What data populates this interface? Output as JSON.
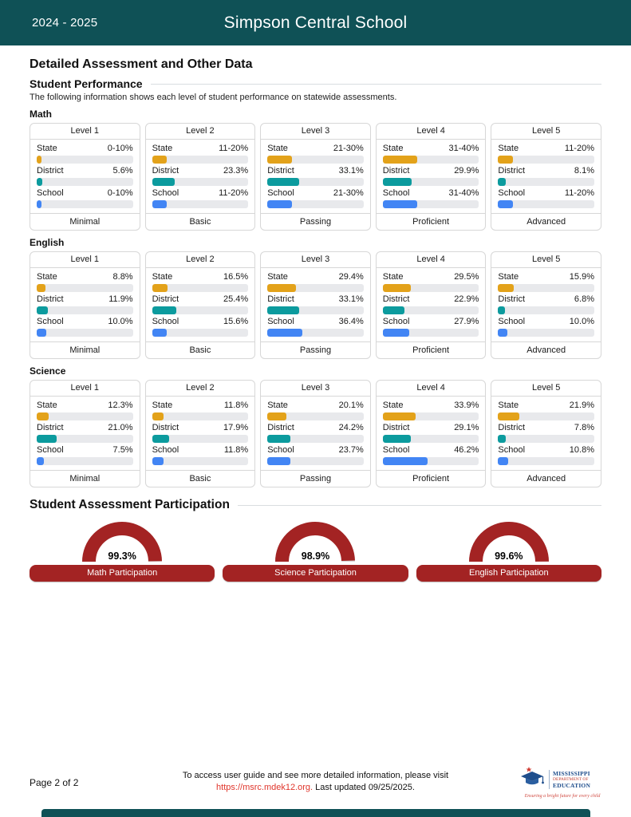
{
  "header": {
    "year": "2024 - 2025",
    "school": "Simpson Central School"
  },
  "main_title": "Detailed Assessment and Other Data",
  "performance": {
    "heading": "Student Performance",
    "subtitle": "The following information shows each level of student performance on statewide assessments.",
    "subjects": [
      {
        "name": "Math",
        "levels": [
          {
            "title": "Level 1",
            "descriptor": "Minimal",
            "rows": [
              {
                "label": "State",
                "key": "state",
                "value": "0-10%",
                "bar": 5
              },
              {
                "label": "District",
                "key": "district",
                "value": "5.6%",
                "bar": 5.6
              },
              {
                "label": "School",
                "key": "school",
                "value": "0-10%",
                "bar": 5
              }
            ]
          },
          {
            "title": "Level 2",
            "descriptor": "Basic",
            "rows": [
              {
                "label": "State",
                "key": "state",
                "value": "11-20%",
                "bar": 15.5
              },
              {
                "label": "District",
                "key": "district",
                "value": "23.3%",
                "bar": 23.3
              },
              {
                "label": "School",
                "key": "school",
                "value": "11-20%",
                "bar": 15.5
              }
            ]
          },
          {
            "title": "Level 3",
            "descriptor": "Passing",
            "rows": [
              {
                "label": "State",
                "key": "state",
                "value": "21-30%",
                "bar": 25.5
              },
              {
                "label": "District",
                "key": "district",
                "value": "33.1%",
                "bar": 33.1
              },
              {
                "label": "School",
                "key": "school",
                "value": "21-30%",
                "bar": 25.5
              }
            ]
          },
          {
            "title": "Level 4",
            "descriptor": "Proficient",
            "rows": [
              {
                "label": "State",
                "key": "state",
                "value": "31-40%",
                "bar": 35.5
              },
              {
                "label": "District",
                "key": "district",
                "value": "29.9%",
                "bar": 29.9
              },
              {
                "label": "School",
                "key": "school",
                "value": "31-40%",
                "bar": 35.5
              }
            ]
          },
          {
            "title": "Level 5",
            "descriptor": "Advanced",
            "rows": [
              {
                "label": "State",
                "key": "state",
                "value": "11-20%",
                "bar": 15.5
              },
              {
                "label": "District",
                "key": "district",
                "value": "8.1%",
                "bar": 8.1
              },
              {
                "label": "School",
                "key": "school",
                "value": "11-20%",
                "bar": 15.5
              }
            ]
          }
        ]
      },
      {
        "name": "English",
        "levels": [
          {
            "title": "Level 1",
            "descriptor": "Minimal",
            "rows": [
              {
                "label": "State",
                "key": "state",
                "value": "8.8%",
                "bar": 8.8
              },
              {
                "label": "District",
                "key": "district",
                "value": "11.9%",
                "bar": 11.9
              },
              {
                "label": "School",
                "key": "school",
                "value": "10.0%",
                "bar": 10
              }
            ]
          },
          {
            "title": "Level 2",
            "descriptor": "Basic",
            "rows": [
              {
                "label": "State",
                "key": "state",
                "value": "16.5%",
                "bar": 16.5
              },
              {
                "label": "District",
                "key": "district",
                "value": "25.4%",
                "bar": 25.4
              },
              {
                "label": "School",
                "key": "school",
                "value": "15.6%",
                "bar": 15.6
              }
            ]
          },
          {
            "title": "Level 3",
            "descriptor": "Passing",
            "rows": [
              {
                "label": "State",
                "key": "state",
                "value": "29.4%",
                "bar": 29.4
              },
              {
                "label": "District",
                "key": "district",
                "value": "33.1%",
                "bar": 33.1
              },
              {
                "label": "School",
                "key": "school",
                "value": "36.4%",
                "bar": 36.4
              }
            ]
          },
          {
            "title": "Level 4",
            "descriptor": "Proficient",
            "rows": [
              {
                "label": "State",
                "key": "state",
                "value": "29.5%",
                "bar": 29.5
              },
              {
                "label": "District",
                "key": "district",
                "value": "22.9%",
                "bar": 22.9
              },
              {
                "label": "School",
                "key": "school",
                "value": "27.9%",
                "bar": 27.9
              }
            ]
          },
          {
            "title": "Level 5",
            "descriptor": "Advanced",
            "rows": [
              {
                "label": "State",
                "key": "state",
                "value": "15.9%",
                "bar": 15.9
              },
              {
                "label": "District",
                "key": "district",
                "value": "6.8%",
                "bar": 6.8
              },
              {
                "label": "School",
                "key": "school",
                "value": "10.0%",
                "bar": 10
              }
            ]
          }
        ]
      },
      {
        "name": "Science",
        "levels": [
          {
            "title": "Level 1",
            "descriptor": "Minimal",
            "rows": [
              {
                "label": "State",
                "key": "state",
                "value": "12.3%",
                "bar": 12.3
              },
              {
                "label": "District",
                "key": "district",
                "value": "21.0%",
                "bar": 21
              },
              {
                "label": "School",
                "key": "school",
                "value": "7.5%",
                "bar": 7.5
              }
            ]
          },
          {
            "title": "Level 2",
            "descriptor": "Basic",
            "rows": [
              {
                "label": "State",
                "key": "state",
                "value": "11.8%",
                "bar": 11.8
              },
              {
                "label": "District",
                "key": "district",
                "value": "17.9%",
                "bar": 17.9
              },
              {
                "label": "School",
                "key": "school",
                "value": "11.8%",
                "bar": 11.8
              }
            ]
          },
          {
            "title": "Level 3",
            "descriptor": "Passing",
            "rows": [
              {
                "label": "State",
                "key": "state",
                "value": "20.1%",
                "bar": 20.1
              },
              {
                "label": "District",
                "key": "district",
                "value": "24.2%",
                "bar": 24.2
              },
              {
                "label": "School",
                "key": "school",
                "value": "23.7%",
                "bar": 23.7
              }
            ]
          },
          {
            "title": "Level 4",
            "descriptor": "Proficient",
            "rows": [
              {
                "label": "State",
                "key": "state",
                "value": "33.9%",
                "bar": 33.9
              },
              {
                "label": "District",
                "key": "district",
                "value": "29.1%",
                "bar": 29.1
              },
              {
                "label": "School",
                "key": "school",
                "value": "46.2%",
                "bar": 46.2
              }
            ]
          },
          {
            "title": "Level 5",
            "descriptor": "Advanced",
            "rows": [
              {
                "label": "State",
                "key": "state",
                "value": "21.9%",
                "bar": 21.9
              },
              {
                "label": "District",
                "key": "district",
                "value": "7.8%",
                "bar": 7.8
              },
              {
                "label": "School",
                "key": "school",
                "value": "10.8%",
                "bar": 10.8
              }
            ]
          }
        ]
      }
    ]
  },
  "participation": {
    "heading": "Student Assessment Participation",
    "gauges": [
      {
        "label": "Math Participation",
        "value": "99.3%",
        "percent": 99.3
      },
      {
        "label": "Science Participation",
        "value": "98.9%",
        "percent": 98.9
      },
      {
        "label": "English Participation",
        "value": "99.6%",
        "percent": 99.6
      }
    ]
  },
  "footer": {
    "page_label": "Page 2 of 2",
    "note_line1": "To access user guide and see more detailed information, please visit",
    "link": "https://msrc.mdek12.org.",
    "note_line2": " Last updated 09/25/2025.",
    "logo": {
      "line1": "MISSISSIPPI",
      "line2": "DEPARTMENT OF",
      "line3": "EDUCATION",
      "tagline": "Ensuring a bright future for every child"
    }
  },
  "colors": {
    "state": "#E3A21A",
    "district": "#0C9B9E",
    "school": "#4285F4",
    "red": "#A32323",
    "teal": "#0F5156",
    "link": "#E0352B",
    "track": "#E8E9EC",
    "border": "#D7D7D7",
    "logo_blue": "#1F4E8C"
  }
}
